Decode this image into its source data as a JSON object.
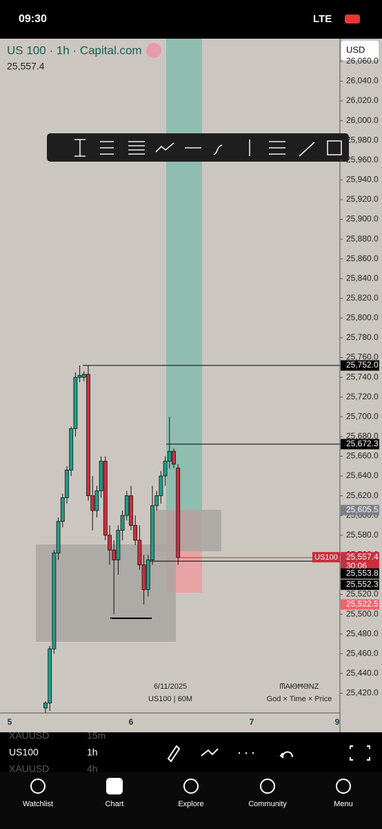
{
  "status_bar": {
    "time": "09:30",
    "network": "LTE"
  },
  "header": {
    "symbol": "US 100 · 1h · Capital.com",
    "price": "25,557.4",
    "currency": "USD"
  },
  "chart_data": {
    "type": "candlestick",
    "candles": {
      "open": [
        25405,
        25410,
        25465,
        25562,
        25594,
        25618,
        25646,
        25688,
        25740,
        25740,
        25743,
        25620,
        25605,
        25625,
        25655,
        25580,
        25565,
        25555,
        25585,
        25600,
        25620,
        25590,
        25575,
        25550,
        25525,
        25555,
        25610,
        25620,
        25640,
        25655,
        25665,
        25648
      ],
      "high": [
        25412,
        25468,
        25565,
        25598,
        25622,
        25650,
        25690,
        25745,
        25752,
        25746,
        25752,
        25640,
        25630,
        25660,
        25660,
        25590,
        25575,
        25590,
        25605,
        25625,
        25630,
        25600,
        25590,
        25560,
        25560,
        25630,
        25625,
        25645,
        25660,
        25700,
        25668,
        25652
      ],
      "low": [
        25400,
        25402,
        25460,
        25555,
        25588,
        25612,
        25640,
        25680,
        25735,
        25736,
        25615,
        25585,
        25598,
        25618,
        25575,
        25550,
        25500,
        25540,
        25575,
        25595,
        25585,
        25570,
        25545,
        25510,
        25518,
        25550,
        25605,
        25612,
        25630,
        25648,
        25648,
        25550
      ],
      "close": [
        25410,
        25465,
        25562,
        25594,
        25618,
        25646,
        25688,
        25740,
        25742,
        25743,
        25620,
        25605,
        25625,
        25655,
        25580,
        25565,
        25555,
        25585,
        25600,
        25620,
        25590,
        25575,
        25550,
        25525,
        25555,
        25610,
        25620,
        25640,
        25655,
        25665,
        25652,
        25557.4
      ]
    },
    "colors": {
      "up": "#1f9e86",
      "down": "#c8303f"
    },
    "ylim": [
      25400,
      26083
    ],
    "yticks": [
      {
        "value": 26060,
        "label": "26,060.0"
      },
      {
        "value": 26040,
        "label": "26,040.0"
      },
      {
        "value": 26020,
        "label": "26,020.0"
      },
      {
        "value": 26000,
        "label": "26,000.0"
      },
      {
        "value": 25980,
        "label": "25,980.0"
      },
      {
        "value": 25960,
        "label": "25,960.0"
      },
      {
        "value": 25940,
        "label": "25,940.0"
      },
      {
        "value": 25920,
        "label": "25,920.0"
      },
      {
        "value": 25900,
        "label": "25,900.0"
      },
      {
        "value": 25880,
        "label": "25,880.0"
      },
      {
        "value": 25860,
        "label": "25,860.0"
      },
      {
        "value": 25840,
        "label": "25,840.0"
      },
      {
        "value": 25820,
        "label": "25,820.0"
      },
      {
        "value": 25800,
        "label": "25,800.0"
      },
      {
        "value": 25780,
        "label": "25,780.0"
      },
      {
        "value": 25760,
        "label": "25,760.0"
      },
      {
        "value": 25740,
        "label": "25,740.0"
      },
      {
        "value": 25720,
        "label": "25,720.0"
      },
      {
        "value": 25700,
        "label": "25,700.0"
      },
      {
        "value": 25680,
        "label": "25,680.0"
      },
      {
        "value": 25660,
        "label": "25,660.0"
      },
      {
        "value": 25640,
        "label": "25,640.0"
      },
      {
        "value": 25620,
        "label": "25,620.0"
      },
      {
        "value": 25600,
        "label": "25,600.0"
      },
      {
        "value": 25580,
        "label": "25,580.0"
      },
      {
        "value": 25560,
        "label": "25,560.0"
      },
      {
        "value": 25540,
        "label": "25,540.0"
      },
      {
        "value": 25520,
        "label": "25,520.0"
      },
      {
        "value": 25500,
        "label": "25,500.0"
      },
      {
        "value": 25480,
        "label": "25,480.0"
      },
      {
        "value": 25460,
        "label": "25,460.0"
      },
      {
        "value": 25440,
        "label": "25,440.0"
      },
      {
        "value": 25420,
        "label": "25,420.0"
      }
    ],
    "x_labels": [
      "5",
      "6",
      "7",
      "9"
    ],
    "price_tags": [
      {
        "value": 25752,
        "label": "25,752.0",
        "color": "#000000"
      },
      {
        "value": 25672.3,
        "label": "25,672.3",
        "color": "#000000"
      },
      {
        "value": 25605.5,
        "label": "25,605.5",
        "color": "#7b7f87"
      },
      {
        "value": 25557.4,
        "label": "25,557.4",
        "color": "#c8303f"
      },
      {
        "value": 25553.8,
        "label": "25,553.8",
        "color": "#000000"
      },
      {
        "value": 25552.3,
        "label": "25,552.3",
        "color": "#000000"
      },
      {
        "value": 25522.5,
        "label": "25,522.5",
        "color": "#f0636d"
      }
    ],
    "current": {
      "symbol": "US100",
      "countdown": "30:06"
    },
    "watermark": {
      "date": "6/11/2025",
      "source": "US100 | 60M",
      "author": "ᗰAłƏĦƏNZ",
      "motto": "God × Time × Price"
    }
  },
  "watchlist": [
    {
      "symbol": "XAUUSD",
      "interval": "15m"
    },
    {
      "symbol": "US100",
      "interval": "1h"
    },
    {
      "symbol": "XAUUSD",
      "interval": "4h"
    }
  ],
  "nav": [
    "Watchlist",
    "Chart",
    "Explore",
    "Community",
    "Menu"
  ]
}
